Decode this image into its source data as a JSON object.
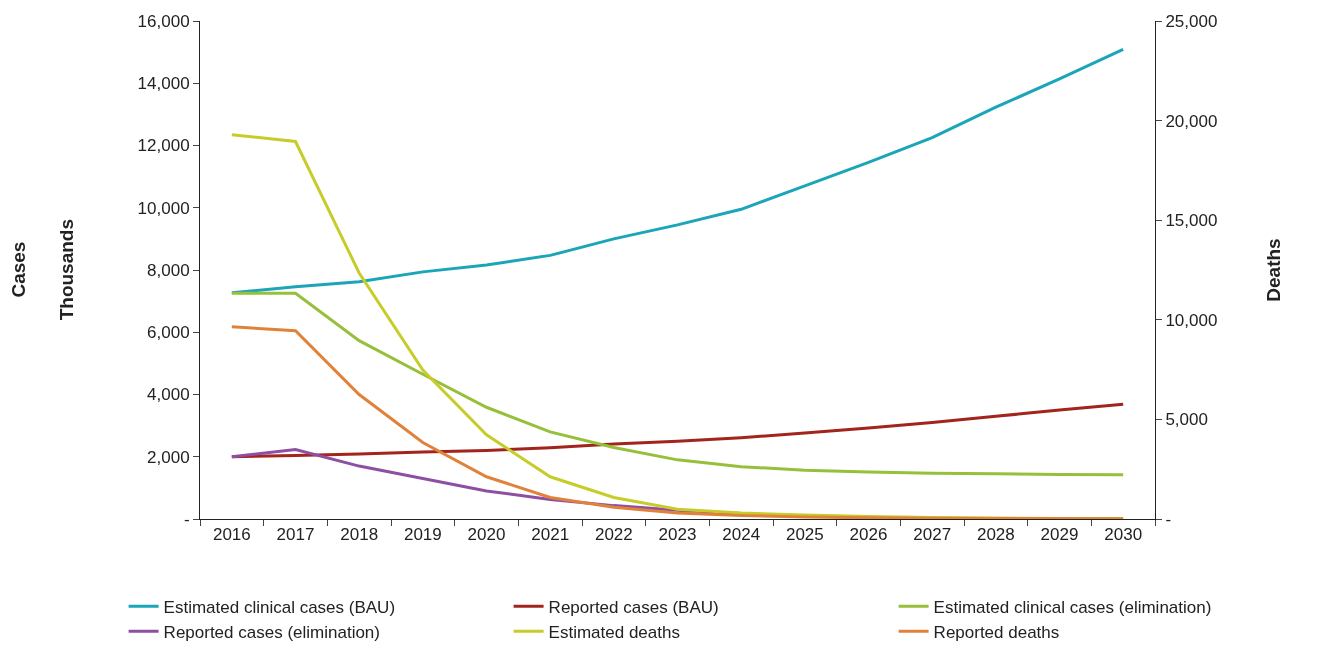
{
  "chart_data": {
    "type": "line",
    "y2label": "Deaths",
    "annotations": [
      "Cases",
      "Thousands"
    ],
    "categories": [
      "2016",
      "2017",
      "2018",
      "2019",
      "2020",
      "2021",
      "2022",
      "2023",
      "2024",
      "2025",
      "2026",
      "2027",
      "2028",
      "2029",
      "2030"
    ],
    "ylim": [
      0,
      16000
    ],
    "yticks": [
      {
        "value": 0,
        "label": "-"
      },
      {
        "value": 2000,
        "label": "2,000"
      },
      {
        "value": 4000,
        "label": "4,000"
      },
      {
        "value": 6000,
        "label": "6,000"
      },
      {
        "value": 8000,
        "label": "8,000"
      },
      {
        "value": 10000,
        "label": "10,000"
      },
      {
        "value": 12000,
        "label": "12,000"
      },
      {
        "value": 14000,
        "label": "14,000"
      },
      {
        "value": 16000,
        "label": "16,000"
      }
    ],
    "y2lim": [
      0,
      25000
    ],
    "y2ticks": [
      {
        "value": 0,
        "label": "-"
      },
      {
        "value": 5000,
        "label": "5,000"
      },
      {
        "value": 10000,
        "label": "10,000"
      },
      {
        "value": 15000,
        "label": "15,000"
      },
      {
        "value": 20000,
        "label": "20,000"
      },
      {
        "value": 25000,
        "label": "25,000"
      }
    ],
    "legend": "bottom",
    "line_style": "solid",
    "marker": "none",
    "series": [
      {
        "name": "Estimated clinical cases (BAU)",
        "color": "#1ba5b8",
        "values": [
          7270,
          7460,
          7620,
          7940,
          8160,
          8470,
          9000,
          9450,
          9950,
          10700,
          11460,
          12250,
          13230,
          14140,
          15090
        ]
      },
      {
        "name": "Reported cases (BAU)",
        "color": "#a3241c",
        "values": [
          2000,
          2040,
          2090,
          2150,
          2200,
          2290,
          2410,
          2500,
          2610,
          2760,
          2920,
          3100,
          3300,
          3500,
          3690
        ]
      },
      {
        "name": "Estimated clinical cases (elimination)",
        "color": "#96c03a",
        "values": [
          7250,
          7250,
          5730,
          4650,
          3590,
          2800,
          2300,
          1900,
          1680,
          1570,
          1510,
          1470,
          1450,
          1430,
          1420
        ]
      },
      {
        "name": "Reported cases (elimination)",
        "color": "#8e4fa3",
        "values": [
          2000,
          2230,
          1700,
          1300,
          900,
          630,
          430,
          280,
          180,
          null,
          null,
          null,
          null,
          null,
          null
        ]
      },
      {
        "name": "Estimated deaths",
        "color": "#c8cc2a",
        "axis": "y2",
        "values": [
          19290,
          18950,
          12350,
          7480,
          4230,
          2120,
          1080,
          490,
          300,
          200,
          120,
          80,
          50,
          30,
          20
        ]
      },
      {
        "name": "Reported deaths",
        "color": "#e0823a",
        "axis": "y2",
        "values": [
          9650,
          9450,
          6250,
          3840,
          2120,
          1080,
          590,
          300,
          170,
          100,
          60,
          40,
          30,
          20,
          10
        ]
      }
    ]
  }
}
